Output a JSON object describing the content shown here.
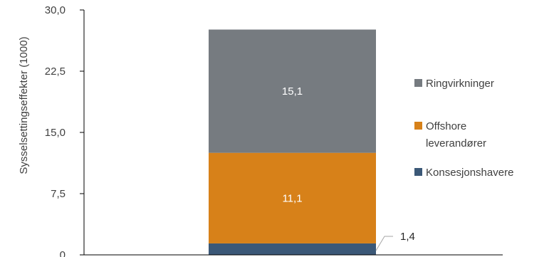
{
  "chart_data": {
    "type": "bar",
    "stacked": true,
    "categories": [
      ""
    ],
    "title": "",
    "xlabel": "",
    "ylabel": "Sysselsettingseffekter (1000)",
    "ylim": [
      0,
      30
    ],
    "yticks": [
      "0",
      "7,5",
      "15,0",
      "22,5",
      "30,0"
    ],
    "yticks_values": [
      0,
      7.5,
      15,
      22.5,
      30
    ],
    "grid": false,
    "legend_position": "right",
    "series": [
      {
        "name": "Konsesjonshavere",
        "values": [
          1.4
        ],
        "label": "1,4",
        "color": "#3b5877",
        "label_style": "callout"
      },
      {
        "name": "Offshore leverandører",
        "legend_lines": [
          "Offshore",
          "leverandører"
        ],
        "values": [
          11.1
        ],
        "label": "11,1",
        "color": "#d78119"
      },
      {
        "name": "Ringvirkninger",
        "values": [
          15.1
        ],
        "label": "15,1",
        "color": "#767b80"
      }
    ],
    "legend_order": [
      2,
      1,
      0
    ]
  }
}
